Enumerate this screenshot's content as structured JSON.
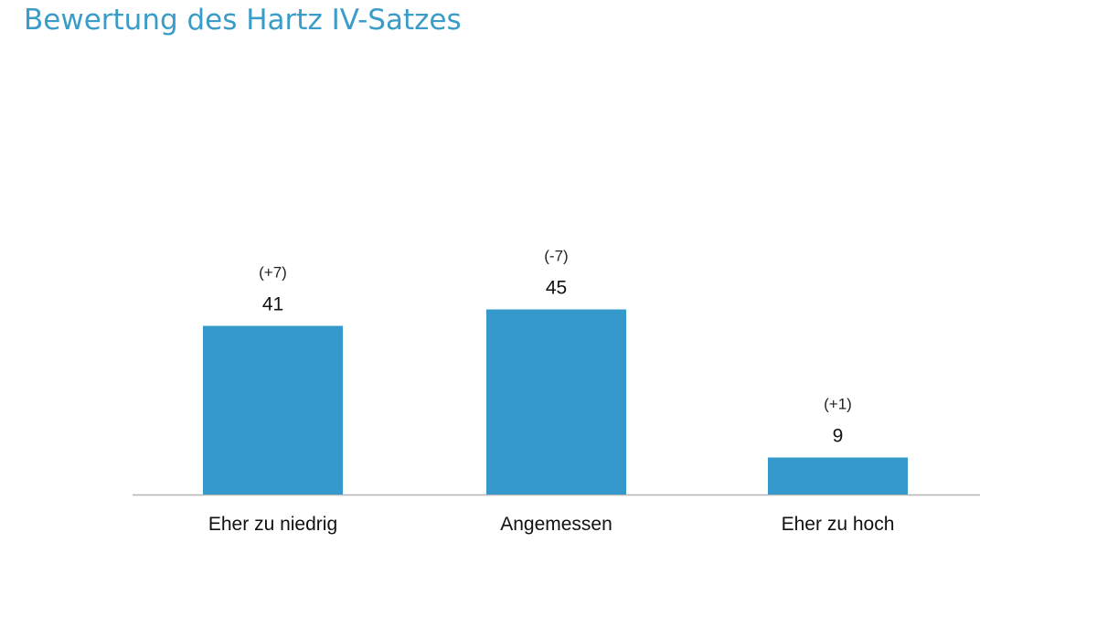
{
  "chart_data": {
    "type": "bar",
    "title": "Bewertung des Hartz IV-Satzes",
    "categories": [
      "Eher zu niedrig",
      "Angemessen",
      "Eher zu hoch"
    ],
    "values": [
      41,
      45,
      9
    ],
    "changes": [
      "(+7)",
      "(-7)",
      "(+1)"
    ],
    "xlabel": "",
    "ylabel": "",
    "ylim": [
      0,
      50
    ],
    "grid": false,
    "bar_color": "#359acb",
    "title_color": "#3a9cc8"
  }
}
